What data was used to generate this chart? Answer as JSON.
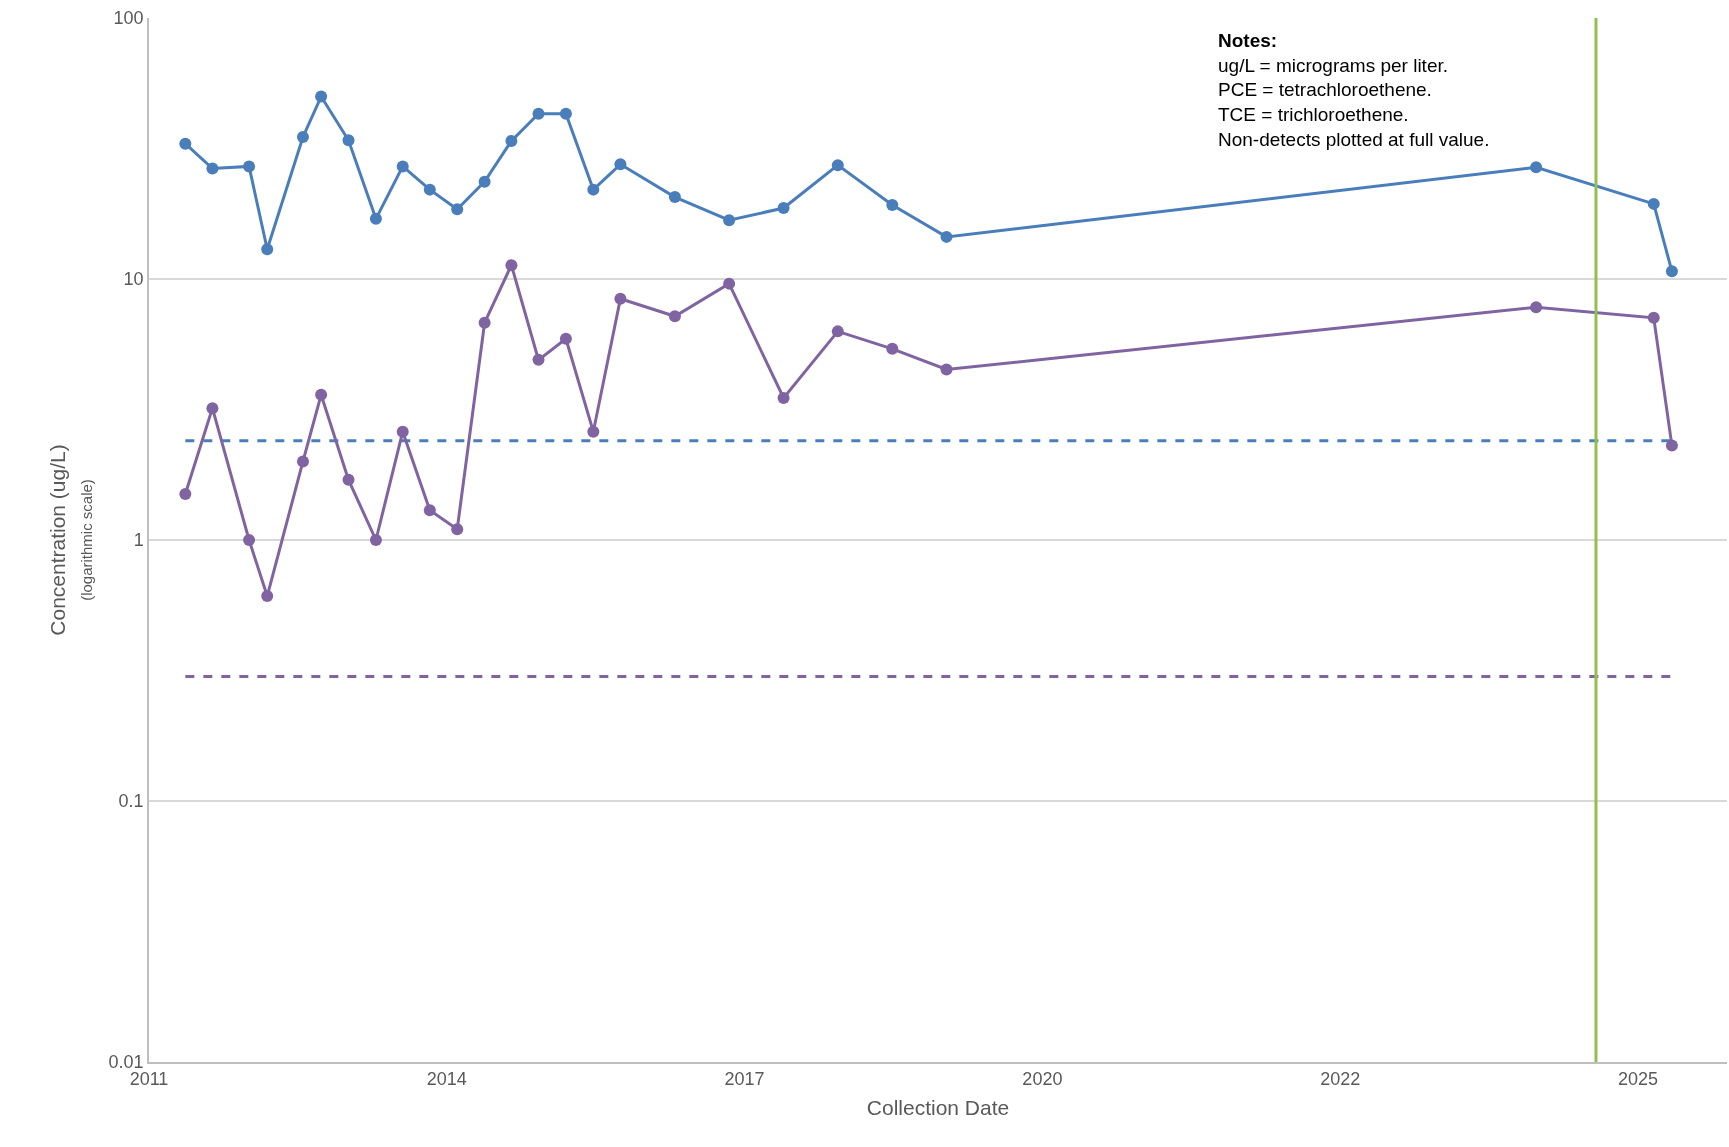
{
  "chart_data": {
    "type": "line",
    "xlabel": "Collection Date",
    "ylabel": "Concentration (ug/L)\n(logarithmic scale)",
    "x": [
      "2012-04",
      "2012-07",
      "2012-11",
      "2013-01",
      "2013-05",
      "2013-07",
      "2013-10",
      "2014-01",
      "2014-04",
      "2014-07",
      "2014-10",
      "2015-01",
      "2015-04",
      "2015-07",
      "2015-10",
      "2016-01",
      "2016-04",
      "2016-10",
      "2017-04",
      "2017-10",
      "2018-04",
      "2018-10",
      "2019-04",
      "2024-09",
      "2025-10",
      "2025-12"
    ],
    "series": [
      {
        "color": "#4a7ebb",
        "values": [
          33,
          26.5,
          27,
          13,
          35,
          50,
          34,
          17,
          27,
          22,
          18.5,
          23.6,
          33.8,
          43,
          43,
          22,
          27.5,
          20.6,
          16.8,
          18.7,
          27.3,
          19.2,
          14.5,
          26.8,
          19.4,
          10.7
        ]
      },
      {
        "color": "#8064a2",
        "values": [
          1.5,
          3.2,
          1.0,
          0.61,
          2.0,
          3.6,
          1.7,
          1.0,
          2.6,
          1.3,
          1.1,
          6.8,
          11.3,
          4.9,
          5.9,
          2.6,
          8.4,
          7.2,
          9.6,
          3.5,
          6.3,
          5.4,
          4.5,
          7.8,
          7.1,
          2.3
        ]
      }
    ],
    "log": "y",
    "ylim": [
      0.01,
      100
    ],
    "yticks": [
      0.01,
      0.1,
      1,
      10,
      100
    ],
    "xlim": [
      "2011-12-01",
      "2026-06-04"
    ],
    "xticks": [
      {
        "value": "2011-12-01",
        "label": "2011"
      },
      {
        "value": "2014-08-27",
        "label": "2014"
      },
      {
        "value": "2017-05-23",
        "label": "2017"
      },
      {
        "value": "2020-02-17",
        "label": "2020"
      },
      {
        "value": "2022-11-13",
        "label": "2022"
      },
      {
        "value": "2025-08-09",
        "label": "2025"
      }
    ],
    "ref_lines": [
      {
        "axis": "y",
        "value": 2.4,
        "color": "#4a7ebb",
        "line_style": "dashed"
      },
      {
        "axis": "y",
        "value": 0.3,
        "color": "#8064a2",
        "line_style": "dashed"
      },
      {
        "axis": "x",
        "value": "2025-03-21",
        "color": "#92c04e",
        "line_style": "solid"
      }
    ],
    "annotations": [
      "Notes:",
      "ug/L = micrograms per liter.",
      "PCE = tetrachloroethene.",
      "TCE = trichloroethene.",
      "Non-detects plotted at full value."
    ],
    "grid": "y",
    "marker": "circle",
    "line_style": "solid"
  }
}
